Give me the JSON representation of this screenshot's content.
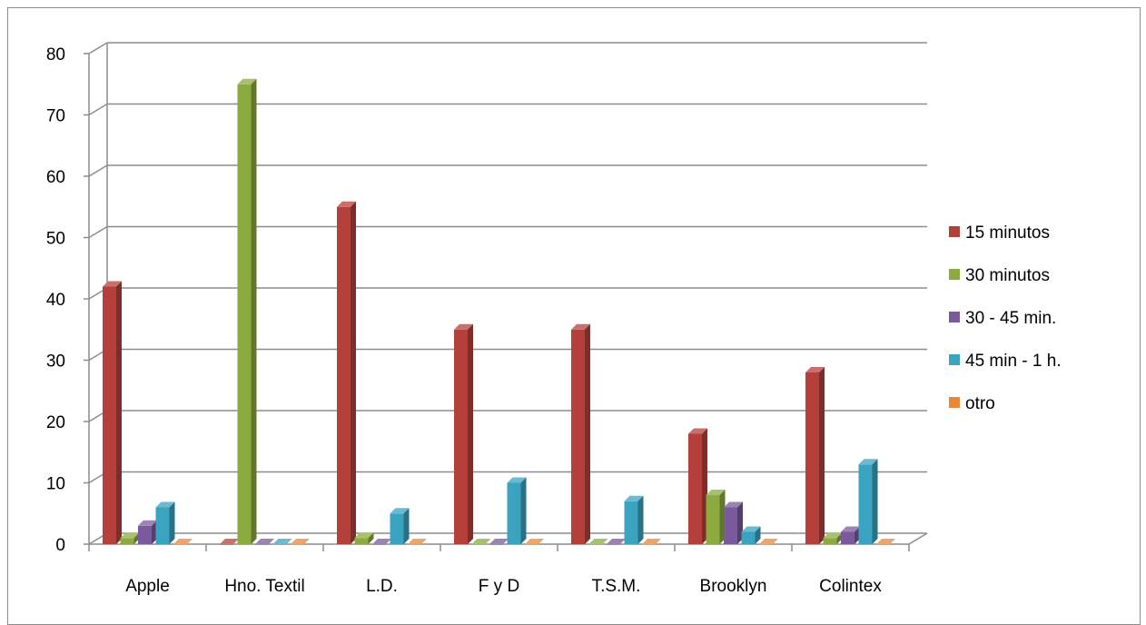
{
  "chart_data": {
    "type": "bar",
    "title": "",
    "xlabel": "",
    "ylabel": "",
    "ylim": [
      0,
      80
    ],
    "yticks": [
      0,
      10,
      20,
      30,
      40,
      50,
      60,
      70,
      80
    ],
    "categories": [
      "Apple",
      "Hno. Textil",
      "L.D.",
      "F y D",
      "T.S.M.",
      "Brooklyn",
      "Colintex"
    ],
    "series": [
      {
        "name": "15 minutos",
        "color": "#b5403b",
        "values": [
          42,
          0,
          55,
          35,
          35,
          18,
          28
        ]
      },
      {
        "name": "30 minutos",
        "color": "#8bab3f",
        "values": [
          1,
          75,
          1,
          0,
          0,
          8,
          1
        ]
      },
      {
        "name": "30 - 45 min.",
        "color": "#7a5a9c",
        "values": [
          3,
          0,
          0,
          0,
          0,
          6,
          2
        ]
      },
      {
        "name": "45 min - 1 h.",
        "color": "#3aa3bf",
        "values": [
          6,
          0,
          5,
          10,
          7,
          2,
          13
        ]
      },
      {
        "name": "otro",
        "color": "#e8863a",
        "values": [
          0,
          0,
          0,
          0,
          0,
          0,
          0
        ]
      }
    ],
    "grid": true,
    "legend_position": "right"
  }
}
